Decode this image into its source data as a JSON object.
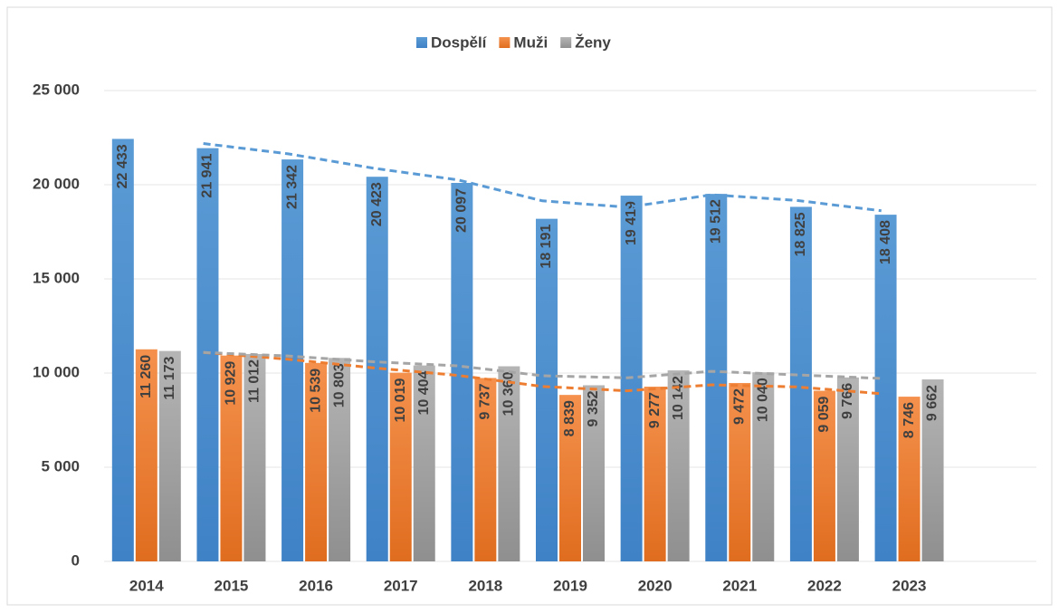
{
  "chart_data": {
    "type": "bar",
    "categories": [
      "2014",
      "2015",
      "2016",
      "2017",
      "2018",
      "2019",
      "2020",
      "2021",
      "2022",
      "2023",
      null
    ],
    "series": [
      {
        "name": "Dospělí",
        "color": "#5b9bd5",
        "values": [
          22433,
          21941,
          21342,
          20423,
          20097,
          18191,
          19419,
          19512,
          18825,
          18408,
          null
        ],
        "value_labels": [
          "22 433",
          "21 941",
          "21 342",
          "20 423",
          "20 097",
          "18 191",
          "19 419",
          "19 512",
          "18 825",
          "18 408",
          null
        ]
      },
      {
        "name": "Muži",
        "color": "#ed7d31",
        "values": [
          11260,
          10929,
          10539,
          10019,
          9737,
          8839,
          9277,
          9472,
          9059,
          8746,
          null
        ],
        "value_labels": [
          "11 260",
          "10 929",
          "10 539",
          "10 019",
          "9 737",
          "8 839",
          "9 277",
          "9 472",
          "9 059",
          "8 746",
          null
        ]
      },
      {
        "name": "Ženy",
        "color": "#a5a5a5",
        "values": [
          11173,
          11012,
          10803,
          10404,
          10360,
          9352,
          10142,
          10040,
          9766,
          9662,
          null
        ],
        "value_labels": [
          "11 173",
          "11 012",
          "10 803",
          "10 404",
          "10 360",
          "9 352",
          "10 142",
          "10 040",
          "9 766",
          "9 662",
          null
        ]
      }
    ],
    "ylim": [
      0,
      25000
    ],
    "yticks": [
      {
        "value": 0,
        "label": "0"
      },
      {
        "value": 5000,
        "label": "5 000"
      },
      {
        "value": 10000,
        "label": "10 000"
      },
      {
        "value": 15000,
        "label": "15 000"
      },
      {
        "value": 20000,
        "label": "20 000"
      },
      {
        "value": 25000,
        "label": "25 000"
      }
    ],
    "grid": true,
    "legend": "top"
  }
}
